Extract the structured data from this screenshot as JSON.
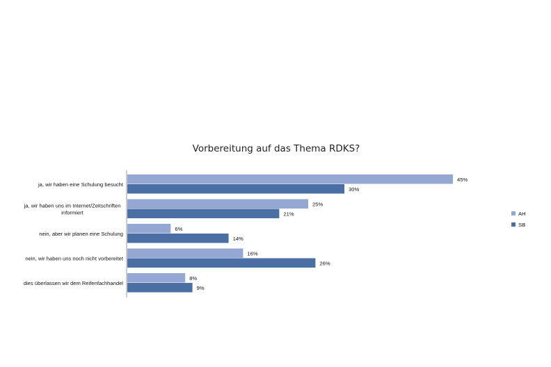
{
  "chart_data": {
    "type": "bar",
    "orientation": "horizontal",
    "title": "Vorbereitung auf das Thema RDKS?",
    "categories": [
      [
        "ja, wir haben eine Schulung besucht"
      ],
      [
        "ja, wir haben uns im Internet/Zeitschriften",
        "informiert"
      ],
      [
        "nein, aber wir planen eine Schulung"
      ],
      [
        "nein, wir haben uns noch nicht vorbereitet"
      ],
      [
        "dies überlassen wir dem Reifenfachhandel"
      ]
    ],
    "series": [
      {
        "name": "AH",
        "color": "#95A7D3",
        "values": [
          45,
          25,
          6,
          16,
          8
        ],
        "labels": [
          "45%",
          "25%",
          "6%",
          "16%",
          "8%"
        ]
      },
      {
        "name": "SB",
        "color": "#4A6FA5",
        "values": [
          30,
          21,
          14,
          26,
          9
        ],
        "labels": [
          "30%",
          "21%",
          "14%",
          "26%",
          "9%"
        ]
      }
    ],
    "unit": "%",
    "xlim": [
      0,
      50
    ],
    "grid": false,
    "legend": "right"
  }
}
